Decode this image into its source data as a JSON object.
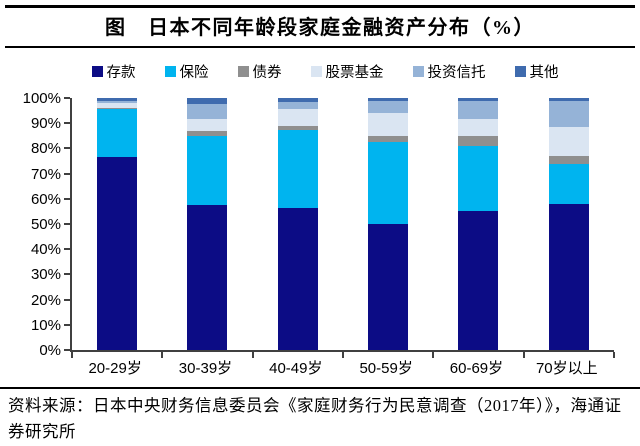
{
  "header": {
    "title": "图　日本不同年龄段家庭金融资产分布（%）"
  },
  "chart_data": {
    "type": "bar",
    "stacked": true,
    "categories": [
      "20-29岁",
      "30-39岁",
      "40-49岁",
      "50-59岁",
      "60-69岁",
      "70岁以上"
    ],
    "series": [
      {
        "name": "存款",
        "color": "#0c0c85",
        "values": [
          76.5,
          57.5,
          56.5,
          50.0,
          55.0,
          58.0
        ]
      },
      {
        "name": "保险",
        "color": "#00b4ef",
        "values": [
          19.0,
          27.5,
          31.0,
          32.5,
          26.0,
          16.0
        ]
      },
      {
        "name": "债券",
        "color": "#8f8f8f",
        "values": [
          0.5,
          2.0,
          1.5,
          2.5,
          4.0,
          3.0
        ]
      },
      {
        "name": "股票基金",
        "color": "#dae5f2",
        "values": [
          2.0,
          4.5,
          6.5,
          9.0,
          6.5,
          11.5
        ]
      },
      {
        "name": "投资信托",
        "color": "#95b3d7",
        "values": [
          1.0,
          6.0,
          3.0,
          5.0,
          7.5,
          10.5
        ]
      },
      {
        "name": "其他",
        "color": "#3f6bae",
        "values": [
          1.0,
          2.5,
          1.5,
          1.0,
          1.0,
          1.0
        ]
      }
    ],
    "ylim": [
      0,
      100
    ],
    "ytick_step": 10,
    "ytick_suffix": "%",
    "legend_position": "top",
    "grid": false,
    "axis_color": "#404040",
    "title": "图　日本不同年龄段家庭金融资产分布（%）"
  },
  "footer": {
    "source": "资料来源：日本中央财务信息委员会《家庭财务行为民意调查（2017年）》，海通证券研究所"
  }
}
